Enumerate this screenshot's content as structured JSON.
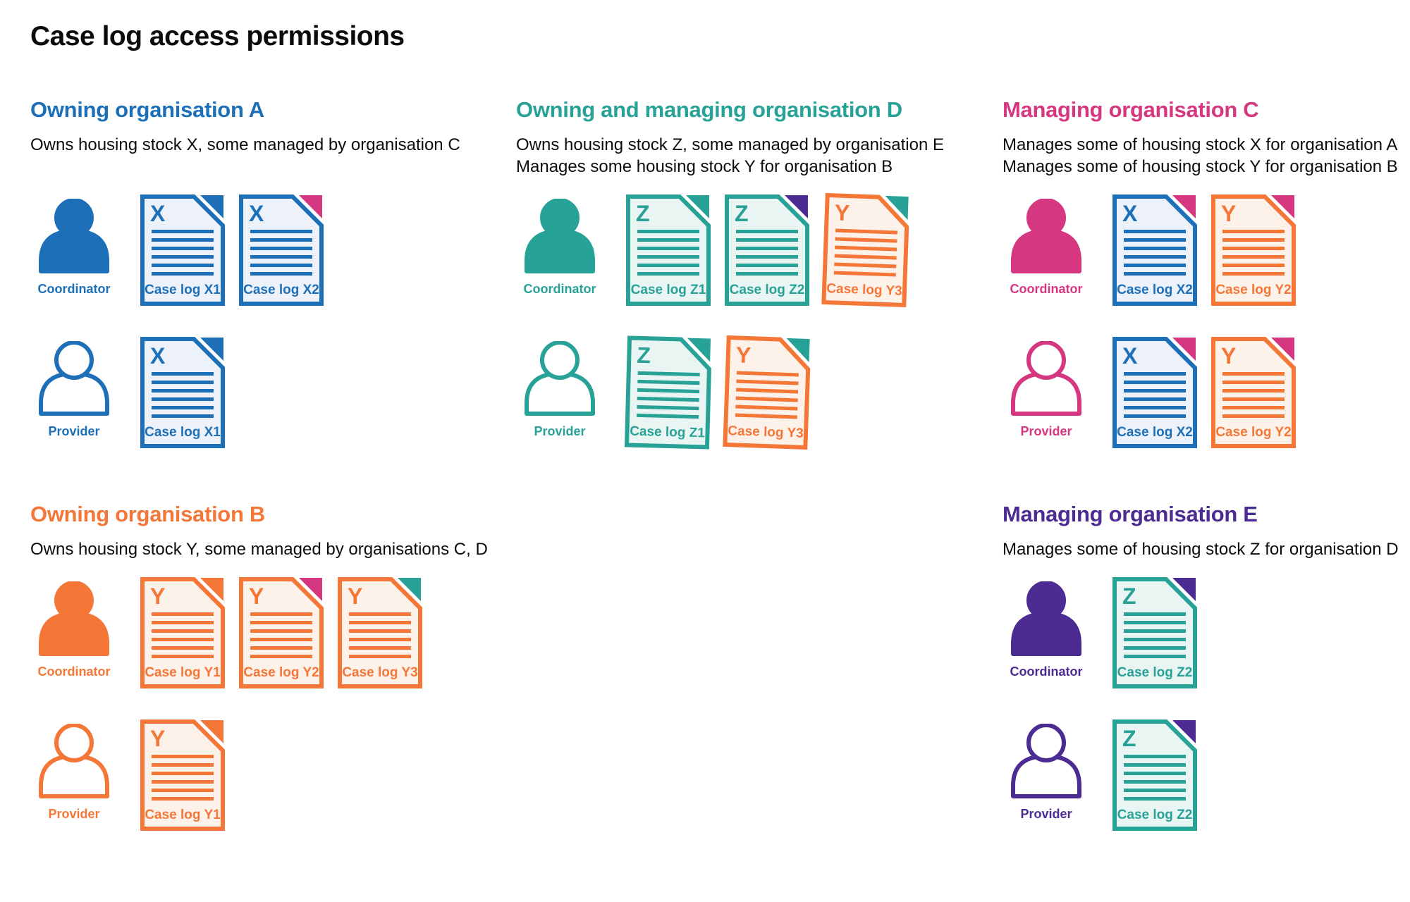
{
  "page_title": "Case log access permissions",
  "colors": {
    "blue": "#1d70b8",
    "teal": "#28a197",
    "pink": "#d53880",
    "orange": "#f47738",
    "purple": "#4c2c92",
    "blue_tint": "#edf2fa",
    "teal_tint": "#e9f5f3",
    "orange_tint": "#fdf2ea",
    "text": "#0b0c0c"
  },
  "roles": {
    "coordinator": "Coordinator",
    "provider": "Provider"
  },
  "sections": [
    {
      "id": "owning-organisation-a",
      "title": "Owning organisation A",
      "color_key": "blue",
      "description": [
        "Owns housing stock X, some managed by organisation C"
      ],
      "rows": [
        {
          "role": "coordinator",
          "person_style": "filled",
          "docs": [
            {
              "letter": "X",
              "label": "Case log X1",
              "doc_color": "blue",
              "fold_color": "blue",
              "tilt": 0
            },
            {
              "letter": "X",
              "label": "Case log X2",
              "doc_color": "blue",
              "fold_color": "pink",
              "tilt": 0
            }
          ]
        },
        {
          "role": "provider",
          "person_style": "outline",
          "docs": [
            {
              "letter": "X",
              "label": "Case log X1",
              "doc_color": "blue",
              "fold_color": "blue",
              "tilt": 0
            }
          ]
        }
      ]
    },
    {
      "id": "owning-and-managing-organisation-d",
      "title": "Owning and managing organisation D",
      "color_key": "teal",
      "description": [
        "Owns housing stock Z, some managed by organisation E",
        "Manages some housing stock Y for organisation B"
      ],
      "rows": [
        {
          "role": "coordinator",
          "person_style": "filled",
          "docs": [
            {
              "letter": "Z",
              "label": "Case log Z1",
              "doc_color": "teal",
              "fold_color": "teal",
              "tilt": 0
            },
            {
              "letter": "Z",
              "label": "Case log Z2",
              "doc_color": "teal",
              "fold_color": "purple",
              "tilt": 0
            },
            {
              "letter": "Y",
              "label": "Case log Y3",
              "doc_color": "orange",
              "fold_color": "teal",
              "tilt": 2
            }
          ]
        },
        {
          "role": "provider",
          "person_style": "outline",
          "docs": [
            {
              "letter": "Z",
              "label": "Case log Z1",
              "doc_color": "teal",
              "fold_color": "teal",
              "tilt": 1.5
            },
            {
              "letter": "Y",
              "label": "Case log Y3",
              "doc_color": "orange",
              "fold_color": "teal",
              "tilt": 2
            }
          ]
        }
      ]
    },
    {
      "id": "managing-organisation-c",
      "title": "Managing organisation C",
      "color_key": "pink",
      "description": [
        "Manages some of housing stock X for organisation A",
        "Manages some of housing stock Y for organisation B"
      ],
      "rows": [
        {
          "role": "coordinator",
          "person_style": "filled",
          "docs": [
            {
              "letter": "X",
              "label": "Case log X2",
              "doc_color": "blue",
              "fold_color": "pink",
              "tilt": 0
            },
            {
              "letter": "Y",
              "label": "Case log Y2",
              "doc_color": "orange",
              "fold_color": "pink",
              "tilt": 0
            }
          ]
        },
        {
          "role": "provider",
          "person_style": "outline",
          "docs": [
            {
              "letter": "X",
              "label": "Case log X2",
              "doc_color": "blue",
              "fold_color": "pink",
              "tilt": 0
            },
            {
              "letter": "Y",
              "label": "Case log Y2",
              "doc_color": "orange",
              "fold_color": "pink",
              "tilt": 0
            }
          ]
        }
      ]
    },
    {
      "id": "owning-organisation-b",
      "title": "Owning organisation B",
      "color_key": "orange",
      "description": [
        "Owns housing stock Y, some managed by organisations C, D"
      ],
      "rows": [
        {
          "role": "coordinator",
          "person_style": "filled",
          "docs": [
            {
              "letter": "Y",
              "label": "Case log Y1",
              "doc_color": "orange",
              "fold_color": "orange",
              "tilt": 0
            },
            {
              "letter": "Y",
              "label": "Case log Y2",
              "doc_color": "orange",
              "fold_color": "pink",
              "tilt": 0
            },
            {
              "letter": "Y",
              "label": "Case log Y3",
              "doc_color": "orange",
              "fold_color": "teal",
              "tilt": 0
            }
          ]
        },
        {
          "role": "provider",
          "person_style": "outline",
          "docs": [
            {
              "letter": "Y",
              "label": "Case log Y1",
              "doc_color": "orange",
              "fold_color": "orange",
              "tilt": 0
            }
          ]
        }
      ]
    },
    {
      "id": "managing-organisation-e",
      "title": "Managing organisation E",
      "color_key": "purple",
      "description": [
        "Manages some of housing stock Z for organisation D"
      ],
      "rows": [
        {
          "role": "coordinator",
          "person_style": "filled",
          "docs": [
            {
              "letter": "Z",
              "label": "Case log Z2",
              "doc_color": "teal",
              "fold_color": "purple",
              "tilt": 0
            }
          ]
        },
        {
          "role": "provider",
          "person_style": "outline",
          "docs": [
            {
              "letter": "Z",
              "label": "Case log Z2",
              "doc_color": "teal",
              "fold_color": "purple",
              "tilt": 0
            }
          ]
        }
      ]
    }
  ]
}
